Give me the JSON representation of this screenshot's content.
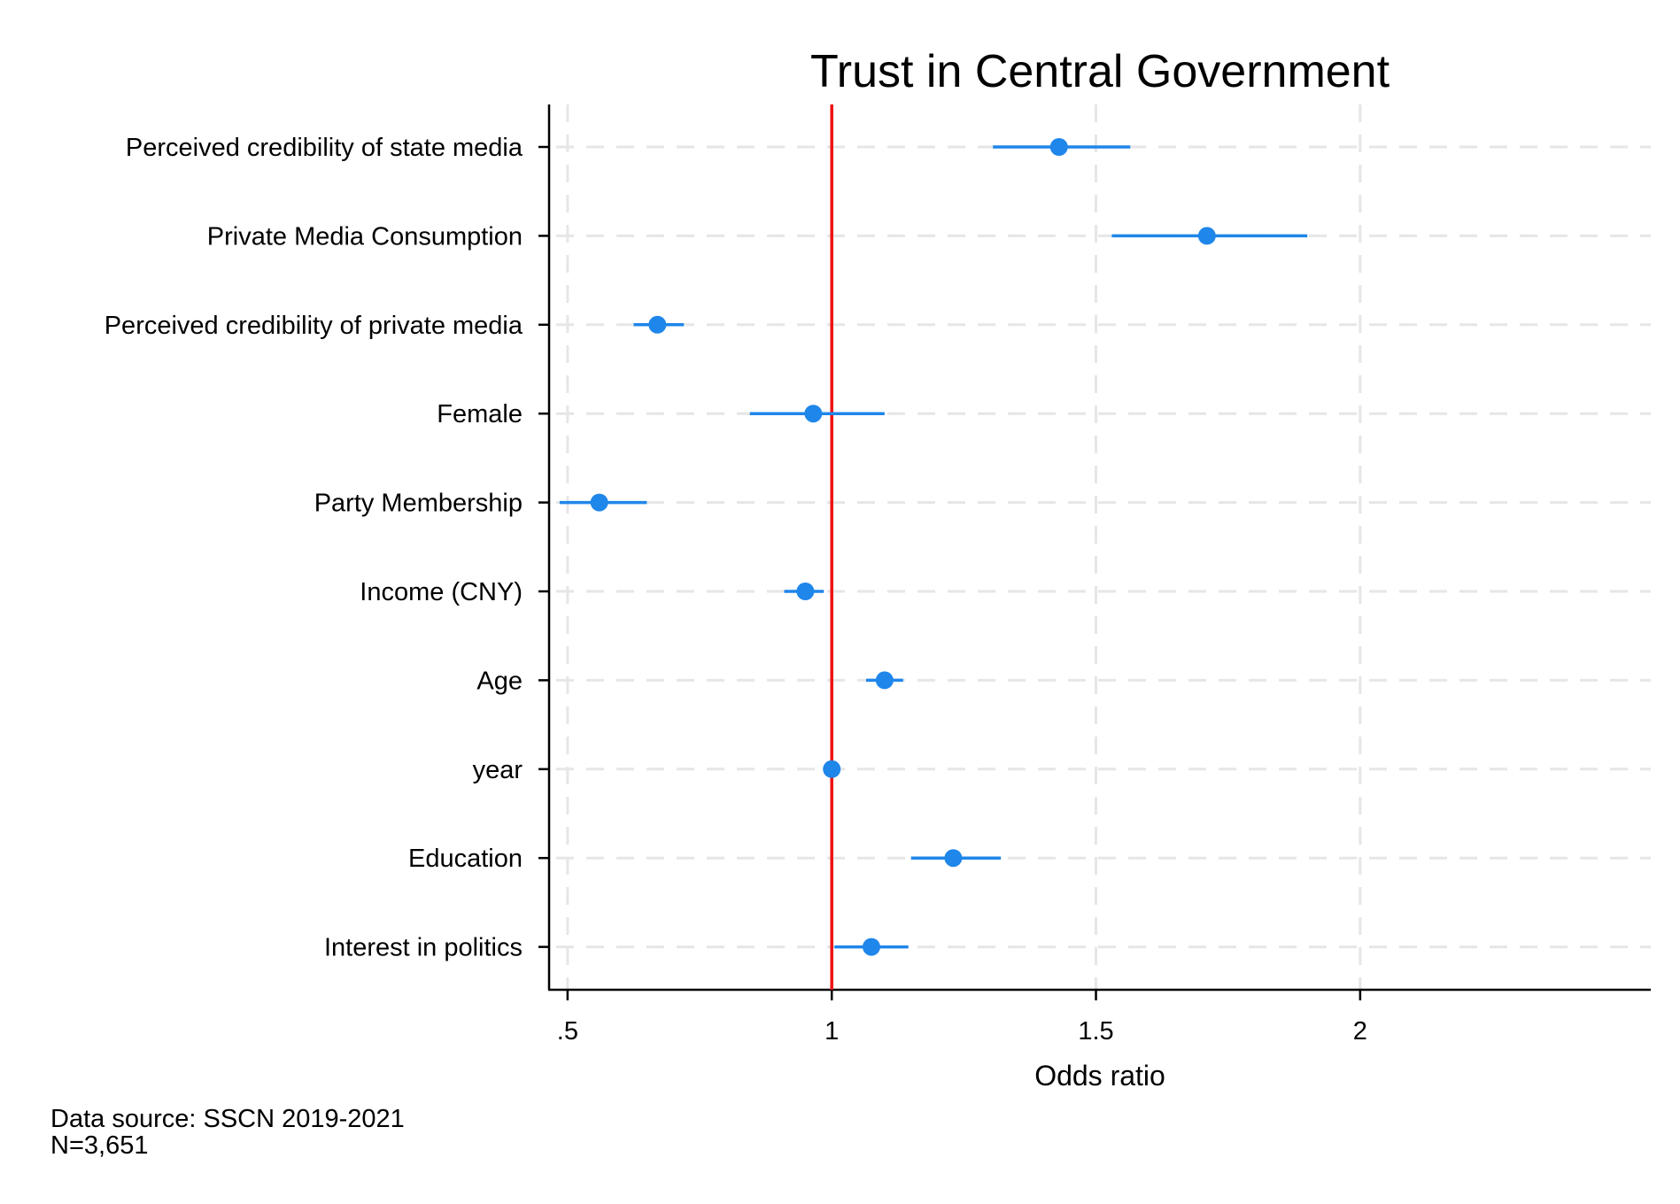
{
  "chart_data": {
    "type": "scatter",
    "subtype": "coefficient plot with confidence intervals",
    "title": "Trust in Central Government",
    "xlabel": "Odds ratio",
    "ylabel": "",
    "xlim": [
      0.465,
      2.55
    ],
    "xticks": [
      0.5,
      1,
      1.5,
      2
    ],
    "xtick_labels": [
      ".5",
      "1",
      "1.5",
      "2"
    ],
    "reference_line": {
      "x": 1,
      "color": "#ee1111"
    },
    "grid": true,
    "grid_style": "dashed",
    "marker_color": "#1f86ea",
    "categories": [
      "Perceived credibility of state media",
      "Private Media Consumption",
      "Perceived credibility of private media",
      "Female",
      "Party Membership",
      "Income (CNY)",
      "Age",
      "year",
      "Education",
      "Interest in politics"
    ],
    "series": [
      {
        "estimate": [
          1.43,
          1.71,
          0.67,
          0.965,
          0.56,
          0.95,
          1.1,
          1.0,
          1.23,
          1.075
        ],
        "ci_low": [
          1.305,
          1.53,
          0.625,
          0.845,
          0.485,
          0.91,
          1.065,
          0.995,
          1.15,
          1.005
        ],
        "ci_high": [
          1.565,
          1.9,
          0.72,
          1.1,
          0.65,
          0.985,
          1.135,
          1.005,
          1.32,
          1.145
        ]
      }
    ]
  },
  "note": {
    "lines": [
      "Data source: SSCN 2019-2021",
      "N=3,651"
    ]
  }
}
